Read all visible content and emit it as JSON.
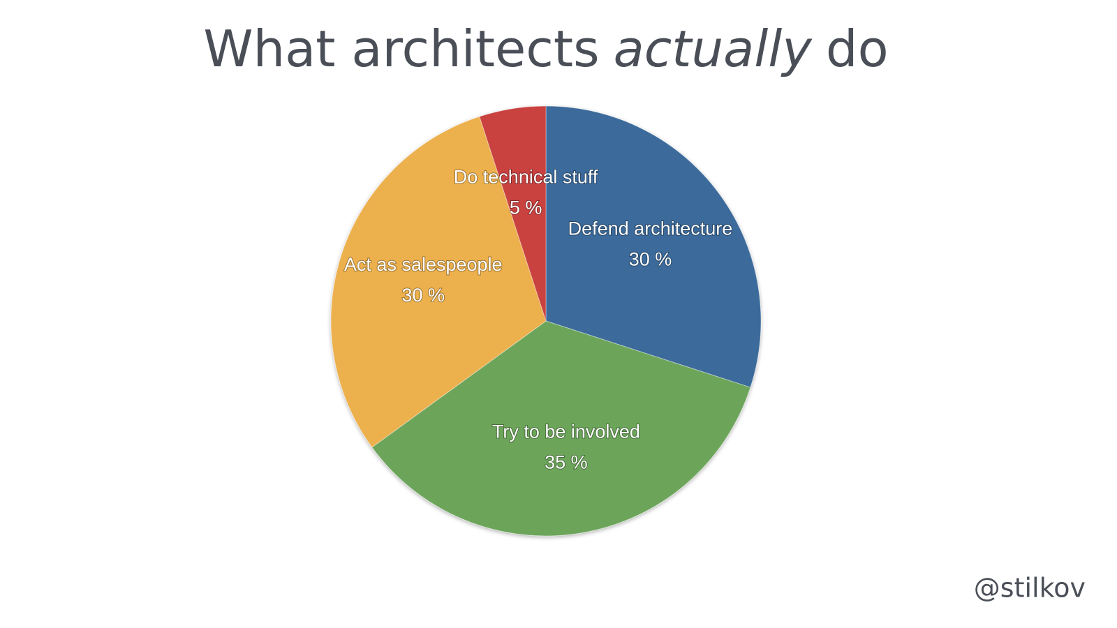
{
  "chart_data": {
    "type": "pie",
    "title": [
      "What architects",
      "actually",
      "do"
    ],
    "title_italic": [
      false,
      true,
      false
    ],
    "categories": [
      "Defend architecture",
      "Try to be involved",
      "Act as salespeople",
      "Do technical stuff"
    ],
    "values": [
      30,
      35,
      30,
      5
    ],
    "value_labels": [
      "30 %",
      "35 %",
      "30 %",
      "5 %"
    ],
    "colors": [
      "#3b6a9b",
      "#6ca55a",
      "#ecb04d",
      "#c9423f"
    ],
    "footer": "@stilkov"
  }
}
